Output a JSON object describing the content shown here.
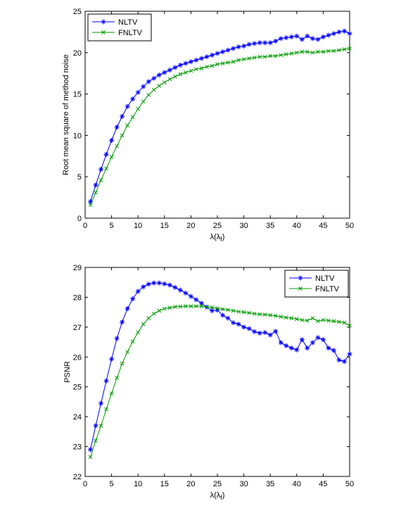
{
  "chart_data": [
    {
      "type": "line",
      "xlabel": "λ(λ",
      "xlabel_sub": "f",
      "xlabel_end": ")",
      "ylabel": "Root mean square of method noise",
      "xlim": [
        0,
        50
      ],
      "ylim": [
        0,
        25
      ],
      "xticks": [
        0,
        5,
        10,
        15,
        20,
        25,
        30,
        35,
        40,
        45,
        50
      ],
      "yticks": [
        0,
        5,
        10,
        15,
        20,
        25
      ],
      "grid": false,
      "legend_position": "top-left",
      "x": [
        1,
        2,
        3,
        4,
        5,
        6,
        7,
        8,
        9,
        10,
        11,
        12,
        13,
        14,
        15,
        16,
        17,
        18,
        19,
        20,
        21,
        22,
        23,
        24,
        25,
        26,
        27,
        28,
        29,
        30,
        31,
        32,
        33,
        34,
        35,
        36,
        37,
        38,
        39,
        40,
        41,
        42,
        43,
        44,
        45,
        46,
        47,
        48,
        49,
        50
      ],
      "series": [
        {
          "name": "NLTV",
          "color": "#0000ff",
          "marker": "star",
          "values": [
            2.0,
            4.0,
            5.9,
            7.7,
            9.4,
            11.0,
            12.3,
            13.5,
            14.4,
            15.2,
            15.9,
            16.5,
            16.9,
            17.3,
            17.6,
            17.9,
            18.2,
            18.5,
            18.7,
            18.9,
            19.1,
            19.3,
            19.5,
            19.7,
            19.9,
            20.1,
            20.3,
            20.5,
            20.7,
            20.8,
            21.0,
            21.1,
            21.2,
            21.2,
            21.2,
            21.4,
            21.7,
            21.8,
            21.9,
            22.0,
            21.6,
            22.0,
            21.7,
            21.6,
            21.9,
            22.1,
            22.3,
            22.5,
            22.6,
            22.3
          ]
        },
        {
          "name": "FNLTV",
          "color": "#009900",
          "marker": "x",
          "values": [
            1.6,
            3.1,
            4.6,
            6.0,
            7.4,
            8.7,
            10.0,
            11.2,
            12.2,
            13.2,
            14.1,
            14.9,
            15.5,
            16.0,
            16.4,
            16.8,
            17.1,
            17.4,
            17.6,
            17.8,
            18.0,
            18.1,
            18.3,
            18.4,
            18.6,
            18.7,
            18.8,
            18.9,
            19.1,
            19.2,
            19.3,
            19.4,
            19.5,
            19.5,
            19.6,
            19.6,
            19.7,
            19.8,
            19.9,
            20.0,
            20.1,
            20.1,
            20.0,
            20.1,
            20.1,
            20.2,
            20.2,
            20.3,
            20.4,
            20.5
          ]
        }
      ]
    },
    {
      "type": "line",
      "xlabel": "λ(λ",
      "xlabel_sub": "f",
      "xlabel_end": ")",
      "ylabel": "PSNR",
      "xlim": [
        0,
        50
      ],
      "ylim": [
        22,
        29
      ],
      "xticks": [
        0,
        5,
        10,
        15,
        20,
        25,
        30,
        35,
        40,
        45,
        50
      ],
      "yticks": [
        22,
        23,
        24,
        25,
        26,
        27,
        28,
        29
      ],
      "grid": false,
      "legend_position": "top-right",
      "x": [
        1,
        2,
        3,
        4,
        5,
        6,
        7,
        8,
        9,
        10,
        11,
        12,
        13,
        14,
        15,
        16,
        17,
        18,
        19,
        20,
        21,
        22,
        23,
        24,
        25,
        26,
        27,
        28,
        29,
        30,
        31,
        32,
        33,
        34,
        35,
        36,
        37,
        38,
        39,
        40,
        41,
        42,
        43,
        44,
        45,
        46,
        47,
        48,
        49,
        50
      ],
      "series": [
        {
          "name": "NLTV",
          "color": "#0000ff",
          "marker": "star",
          "values": [
            22.9,
            23.7,
            24.45,
            25.2,
            25.93,
            26.62,
            27.17,
            27.62,
            27.95,
            28.2,
            28.35,
            28.44,
            28.48,
            28.48,
            28.45,
            28.41,
            28.33,
            28.24,
            28.14,
            28.03,
            27.92,
            27.8,
            27.67,
            27.55,
            27.57,
            27.4,
            27.3,
            27.15,
            27.1,
            27.0,
            26.95,
            26.85,
            26.8,
            26.82,
            26.74,
            26.86,
            26.48,
            26.38,
            26.3,
            26.24,
            26.58,
            26.3,
            26.48,
            26.65,
            26.58,
            26.3,
            26.22,
            25.9,
            25.85,
            26.1
          ]
        },
        {
          "name": "FNLTV",
          "color": "#009900",
          "marker": "x",
          "values": [
            22.65,
            23.2,
            23.7,
            24.25,
            24.78,
            25.3,
            25.78,
            26.17,
            26.52,
            26.83,
            27.1,
            27.3,
            27.45,
            27.55,
            27.62,
            27.65,
            27.68,
            27.69,
            27.7,
            27.7,
            27.7,
            27.7,
            27.68,
            27.66,
            27.63,
            27.6,
            27.58,
            27.55,
            27.52,
            27.5,
            27.48,
            27.45,
            27.43,
            27.42,
            27.4,
            27.38,
            27.35,
            27.32,
            27.3,
            27.27,
            27.24,
            27.22,
            27.3,
            27.2,
            27.24,
            27.22,
            27.2,
            27.18,
            27.15,
            27.05
          ]
        }
      ]
    }
  ]
}
